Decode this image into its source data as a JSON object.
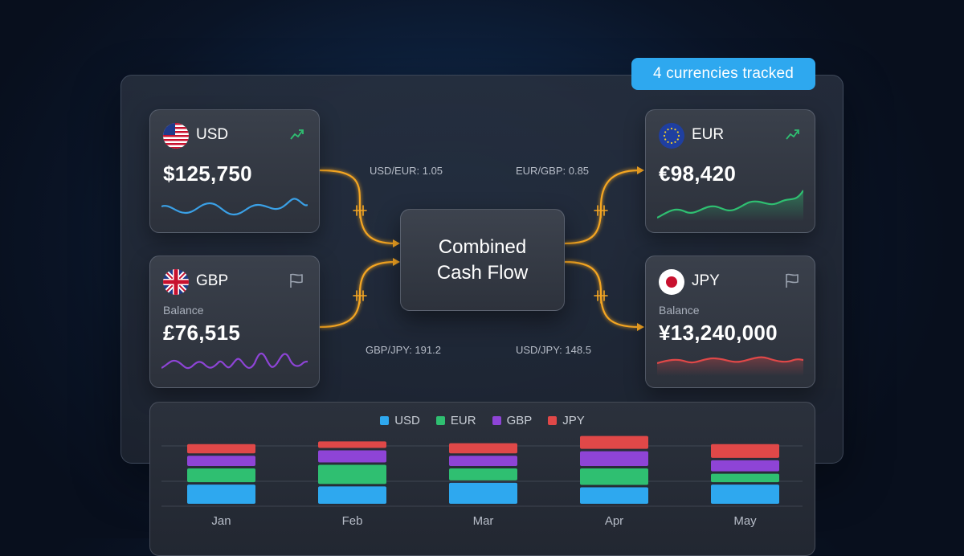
{
  "badge": "4 currencies tracked",
  "center_title": "Combined\nCash Flow",
  "rates": {
    "usd_eur": "USD/EUR: 1.05",
    "eur_gbp": "EUR/GBP: 0.85",
    "gbp_jpy": "GBP/JPY: 191.2",
    "usd_jpy": "USD/JPY: 148.5"
  },
  "cards": {
    "usd": {
      "code": "USD",
      "amount": "$125,750",
      "icon": "trend-up-icon",
      "color": "#3aa0e6"
    },
    "gbp": {
      "code": "GBP",
      "subtitle": "Balance",
      "amount": "£76,515",
      "icon": "flag-icon",
      "color": "#8e44d6"
    },
    "eur": {
      "code": "EUR",
      "amount": "€98,420",
      "icon": "trend-up-icon",
      "color": "#2fbf71"
    },
    "jpy": {
      "code": "JPY",
      "subtitle": "Balance",
      "amount": "¥13,240,000",
      "icon": "flag-icon",
      "color": "#e04848"
    }
  },
  "colors": {
    "flow": "#f5a623",
    "usd": "#2ea8ef",
    "eur": "#2fbf71",
    "gbp": "#8e44d6",
    "jpy": "#e04848",
    "trend": "#2fbf71"
  },
  "chart_data": {
    "type": "bar",
    "stacked": true,
    "categories": [
      "Jan",
      "Feb",
      "Mar",
      "Apr",
      "May"
    ],
    "series": [
      {
        "name": "USD",
        "values": [
          24,
          22,
          26,
          21,
          24
        ]
      },
      {
        "name": "EUR",
        "values": [
          18,
          24,
          16,
          21,
          12
        ]
      },
      {
        "name": "GBP",
        "values": [
          14,
          16,
          14,
          19,
          15
        ]
      },
      {
        "name": "JPY",
        "values": [
          13,
          10,
          14,
          17,
          18
        ]
      }
    ],
    "legend": "top-center",
    "grid": true
  }
}
